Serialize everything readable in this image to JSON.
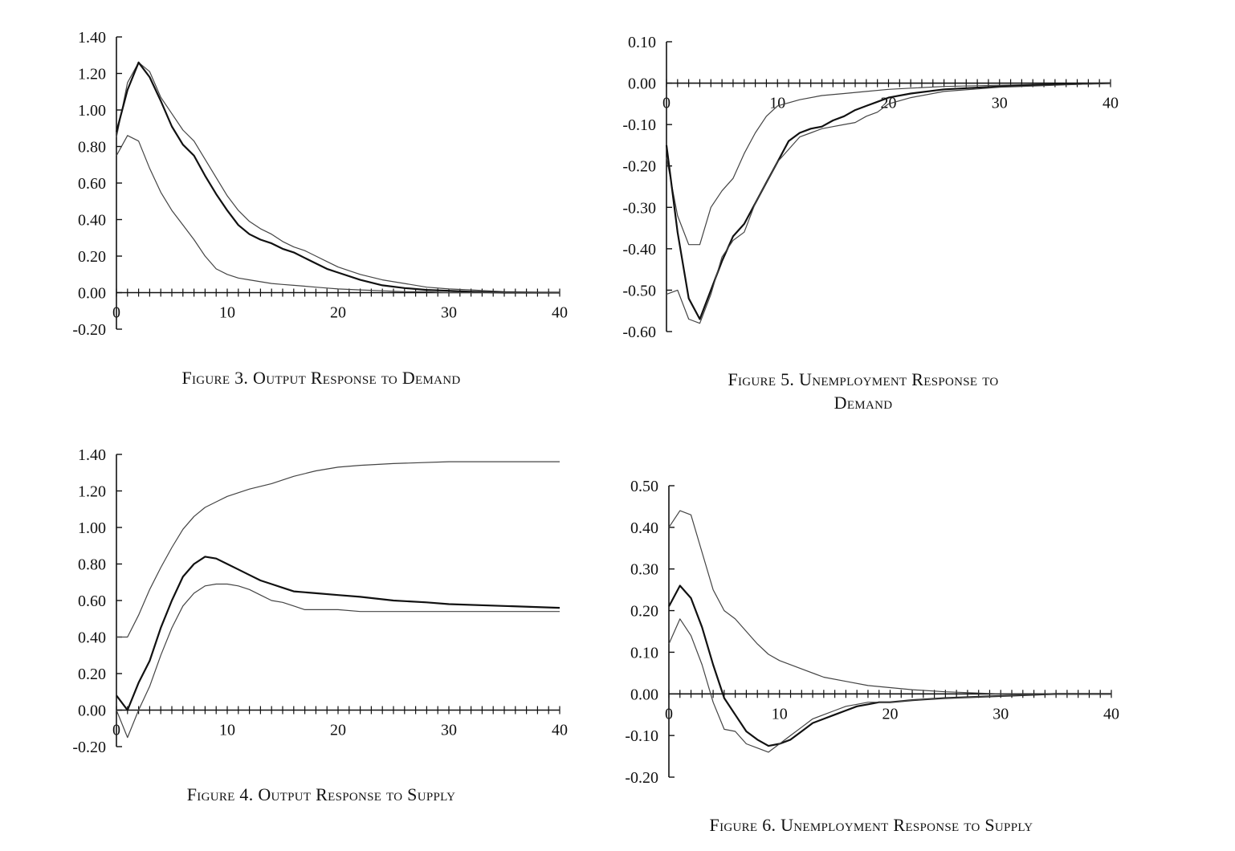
{
  "charts": [
    {
      "id": "fig3",
      "caption": "Figure 3.  Output Response to Demand",
      "chart_data": {
        "type": "line",
        "title": "Figure 3.  Output Response to Demand",
        "xlim": [
          0,
          40
        ],
        "ylim": [
          -0.2,
          1.4
        ],
        "x_ticks": [
          0,
          10,
          20,
          30,
          40
        ],
        "x_tick_labels": [
          "0",
          "10",
          "20",
          "30",
          "40"
        ],
        "y_ticks": [
          1.4,
          1.2,
          1.0,
          0.8,
          0.6,
          0.4,
          0.2,
          0.0,
          -0.2
        ],
        "y_tick_labels": [
          "1.40",
          "1.20",
          "1.00",
          "0.80",
          "0.60",
          "0.40",
          "0.20",
          "0.00",
          "-0.20"
        ],
        "grid": false,
        "legend": "none",
        "series": [
          {
            "style": "upper",
            "x": [
              0,
              1,
              2,
              3,
              4,
              5,
              6,
              7,
              8,
              9,
              10,
              11,
              12,
              13,
              14,
              15,
              16,
              17,
              18,
              19,
              20,
              22,
              24,
              26,
              28,
              30,
              32,
              35,
              40
            ],
            "y": [
              0.85,
              1.15,
              1.26,
              1.21,
              1.07,
              0.98,
              0.89,
              0.83,
              0.73,
              0.63,
              0.53,
              0.45,
              0.39,
              0.35,
              0.32,
              0.28,
              0.25,
              0.23,
              0.2,
              0.17,
              0.14,
              0.1,
              0.07,
              0.05,
              0.03,
              0.02,
              0.015,
              0.005,
              0.0
            ]
          },
          {
            "style": "point",
            "x": [
              0,
              1,
              2,
              3,
              4,
              5,
              6,
              7,
              8,
              9,
              10,
              11,
              12,
              13,
              14,
              15,
              16,
              17,
              18,
              19,
              20,
              22,
              24,
              26,
              28,
              30,
              32,
              35,
              40
            ],
            "y": [
              0.88,
              1.11,
              1.26,
              1.18,
              1.05,
              0.91,
              0.81,
              0.75,
              0.64,
              0.54,
              0.45,
              0.37,
              0.32,
              0.29,
              0.27,
              0.24,
              0.22,
              0.19,
              0.16,
              0.13,
              0.11,
              0.07,
              0.04,
              0.025,
              0.015,
              0.01,
              0.005,
              0.0,
              0.0
            ]
          },
          {
            "style": "lower",
            "x": [
              0,
              1,
              2,
              3,
              4,
              5,
              6,
              7,
              8,
              9,
              10,
              11,
              12,
              13,
              14,
              15,
              16,
              17,
              18,
              19,
              20,
              22,
              24,
              26,
              28,
              30,
              32,
              35,
              40
            ],
            "y": [
              0.75,
              0.86,
              0.83,
              0.68,
              0.55,
              0.45,
              0.37,
              0.29,
              0.2,
              0.13,
              0.1,
              0.08,
              0.07,
              0.06,
              0.05,
              0.045,
              0.04,
              0.035,
              0.03,
              0.025,
              0.02,
              0.015,
              0.01,
              0.005,
              0.005,
              0.0,
              0.0,
              0.0,
              0.0
            ]
          }
        ]
      }
    },
    {
      "id": "fig4",
      "caption": "Figure 4.  Output Response to Supply",
      "chart_data": {
        "type": "line",
        "title": "Figure 4.  Output Response to Supply",
        "xlim": [
          0,
          40
        ],
        "ylim": [
          -0.2,
          1.4
        ],
        "x_ticks": [
          0,
          10,
          20,
          30,
          40
        ],
        "x_tick_labels": [
          "0",
          "10",
          "20",
          "30",
          "40"
        ],
        "y_ticks": [
          1.4,
          1.2,
          1.0,
          0.8,
          0.6,
          0.4,
          0.2,
          0.0,
          -0.2
        ],
        "y_tick_labels": [
          "1.40",
          "1.20",
          "1.00",
          "0.80",
          "0.60",
          "0.40",
          "0.20",
          "0.00",
          "-0.20"
        ],
        "grid": false,
        "legend": "none",
        "series": [
          {
            "style": "upper",
            "x": [
              0,
              1,
              2,
              3,
              4,
              5,
              6,
              7,
              8,
              9,
              10,
              12,
              14,
              16,
              18,
              20,
              22,
              25,
              30,
              35,
              40
            ],
            "y": [
              0.4,
              0.4,
              0.52,
              0.66,
              0.78,
              0.89,
              0.99,
              1.06,
              1.11,
              1.14,
              1.17,
              1.21,
              1.24,
              1.28,
              1.31,
              1.33,
              1.34,
              1.35,
              1.36,
              1.36,
              1.36
            ]
          },
          {
            "style": "point",
            "x": [
              0,
              1,
              2,
              3,
              4,
              5,
              6,
              7,
              8,
              9,
              10,
              11,
              12,
              13,
              14,
              15,
              16,
              18,
              20,
              22,
              25,
              28,
              30,
              35,
              40
            ],
            "y": [
              0.08,
              0.0,
              0.15,
              0.27,
              0.45,
              0.6,
              0.73,
              0.8,
              0.84,
              0.83,
              0.8,
              0.77,
              0.74,
              0.71,
              0.69,
              0.67,
              0.65,
              0.64,
              0.63,
              0.62,
              0.6,
              0.59,
              0.58,
              0.57,
              0.56
            ]
          },
          {
            "style": "lower",
            "x": [
              0,
              1,
              2,
              3,
              4,
              5,
              6,
              7,
              8,
              9,
              10,
              11,
              12,
              13,
              14,
              15,
              16,
              17,
              18,
              20,
              22,
              25,
              30,
              35,
              40
            ],
            "y": [
              0.0,
              -0.15,
              0.0,
              0.13,
              0.3,
              0.45,
              0.57,
              0.64,
              0.68,
              0.69,
              0.69,
              0.68,
              0.66,
              0.63,
              0.6,
              0.59,
              0.57,
              0.55,
              0.55,
              0.55,
              0.54,
              0.54,
              0.54,
              0.54,
              0.54
            ]
          }
        ]
      }
    },
    {
      "id": "fig5",
      "caption_line1": "Figure 5.  Unemployment Response to",
      "caption_line2": "Demand",
      "chart_data": {
        "type": "line",
        "title": "Figure 5.  Unemployment Response to Demand",
        "xlim": [
          0,
          40
        ],
        "ylim": [
          -0.6,
          0.1
        ],
        "x_ticks": [
          0,
          10,
          20,
          30,
          40
        ],
        "x_tick_labels": [
          "0",
          "10",
          "20",
          "30",
          "40"
        ],
        "y_ticks": [
          0.1,
          0.0,
          -0.1,
          -0.2,
          -0.3,
          -0.4,
          -0.5,
          -0.6
        ],
        "y_tick_labels": [
          "0.10",
          "0.00",
          "-0.10",
          "-0.20",
          "-0.30",
          "-0.40",
          "-0.50",
          "-0.60"
        ],
        "grid": false,
        "legend": "none",
        "series": [
          {
            "style": "upper",
            "x": [
              0,
              1,
              2,
              3,
              4,
              5,
              6,
              7,
              8,
              9,
              10,
              12,
              14,
              16,
              18,
              20,
              22,
              25,
              30,
              35,
              40
            ],
            "y": [
              -0.18,
              -0.32,
              -0.39,
              -0.39,
              -0.3,
              -0.26,
              -0.23,
              -0.17,
              -0.12,
              -0.08,
              -0.055,
              -0.04,
              -0.03,
              -0.025,
              -0.02,
              -0.015,
              -0.012,
              -0.008,
              -0.005,
              -0.002,
              0.0
            ]
          },
          {
            "style": "point",
            "x": [
              0,
              1,
              2,
              3,
              4,
              5,
              6,
              7,
              8,
              9,
              10,
              11,
              12,
              13,
              14,
              15,
              16,
              17,
              18,
              19,
              20,
              22,
              25,
              30,
              35,
              40
            ],
            "y": [
              -0.15,
              -0.36,
              -0.52,
              -0.57,
              -0.5,
              -0.43,
              -0.37,
              -0.34,
              -0.29,
              -0.24,
              -0.19,
              -0.14,
              -0.12,
              -0.11,
              -0.105,
              -0.09,
              -0.08,
              -0.065,
              -0.055,
              -0.045,
              -0.035,
              -0.025,
              -0.015,
              -0.008,
              -0.003,
              0.0
            ]
          },
          {
            "style": "lower",
            "x": [
              0,
              1,
              2,
              3,
              4,
              5,
              6,
              7,
              8,
              9,
              10,
              11,
              12,
              13,
              14,
              15,
              16,
              17,
              18,
              19,
              20,
              22,
              25,
              30,
              35,
              40
            ],
            "y": [
              -0.51,
              -0.5,
              -0.57,
              -0.58,
              -0.51,
              -0.42,
              -0.38,
              -0.36,
              -0.29,
              -0.24,
              -0.19,
              -0.16,
              -0.13,
              -0.12,
              -0.11,
              -0.105,
              -0.1,
              -0.095,
              -0.08,
              -0.07,
              -0.05,
              -0.035,
              -0.02,
              -0.01,
              -0.005,
              0.0
            ]
          }
        ]
      }
    },
    {
      "id": "fig6",
      "caption": "Figure 6.  Unemployment Response to Supply",
      "chart_data": {
        "type": "line",
        "title": "Figure 6.  Unemployment Response to Supply",
        "xlim": [
          0,
          40
        ],
        "ylim": [
          -0.2,
          0.5
        ],
        "x_ticks": [
          0,
          10,
          20,
          30,
          40
        ],
        "x_tick_labels": [
          "0",
          "10",
          "20",
          "30",
          "40"
        ],
        "y_ticks": [
          0.5,
          0.4,
          0.3,
          0.2,
          0.1,
          0.0,
          -0.1,
          -0.2
        ],
        "y_tick_labels": [
          "0.50",
          "0.40",
          "0.30",
          "0.20",
          "0.10",
          "0.00",
          "-0.10",
          "-0.20"
        ],
        "grid": false,
        "legend": "none",
        "series": [
          {
            "style": "upper",
            "x": [
              0,
              1,
              2,
              3,
              4,
              5,
              6,
              7,
              8,
              9,
              10,
              12,
              14,
              16,
              18,
              20,
              22,
              25,
              30,
              35,
              40
            ],
            "y": [
              0.4,
              0.44,
              0.43,
              0.34,
              0.25,
              0.2,
              0.18,
              0.15,
              0.12,
              0.095,
              0.08,
              0.06,
              0.04,
              0.03,
              0.02,
              0.015,
              0.01,
              0.005,
              0.0,
              0.0,
              0.0
            ]
          },
          {
            "style": "point",
            "x": [
              0,
              1,
              2,
              3,
              4,
              5,
              6,
              7,
              8,
              9,
              10,
              11,
              12,
              13,
              14,
              15,
              16,
              17,
              18,
              19,
              20,
              22,
              25,
              30,
              35,
              40
            ],
            "y": [
              0.21,
              0.26,
              0.23,
              0.16,
              0.07,
              -0.01,
              -0.05,
              -0.09,
              -0.11,
              -0.125,
              -0.12,
              -0.11,
              -0.09,
              -0.07,
              -0.06,
              -0.05,
              -0.04,
              -0.03,
              -0.025,
              -0.02,
              -0.02,
              -0.015,
              -0.01,
              -0.005,
              0.0,
              0.0
            ]
          },
          {
            "style": "lower",
            "x": [
              0,
              1,
              2,
              3,
              4,
              5,
              6,
              7,
              8,
              9,
              10,
              11,
              12,
              13,
              14,
              15,
              16,
              17,
              18,
              19,
              20,
              22,
              25,
              30,
              35,
              40
            ],
            "y": [
              0.12,
              0.18,
              0.14,
              0.07,
              -0.02,
              -0.085,
              -0.09,
              -0.12,
              -0.13,
              -0.14,
              -0.12,
              -0.1,
              -0.08,
              -0.06,
              -0.05,
              -0.04,
              -0.03,
              -0.025,
              -0.02,
              -0.02,
              -0.02,
              -0.015,
              -0.01,
              -0.005,
              0.0,
              0.0
            ]
          }
        ]
      }
    }
  ]
}
